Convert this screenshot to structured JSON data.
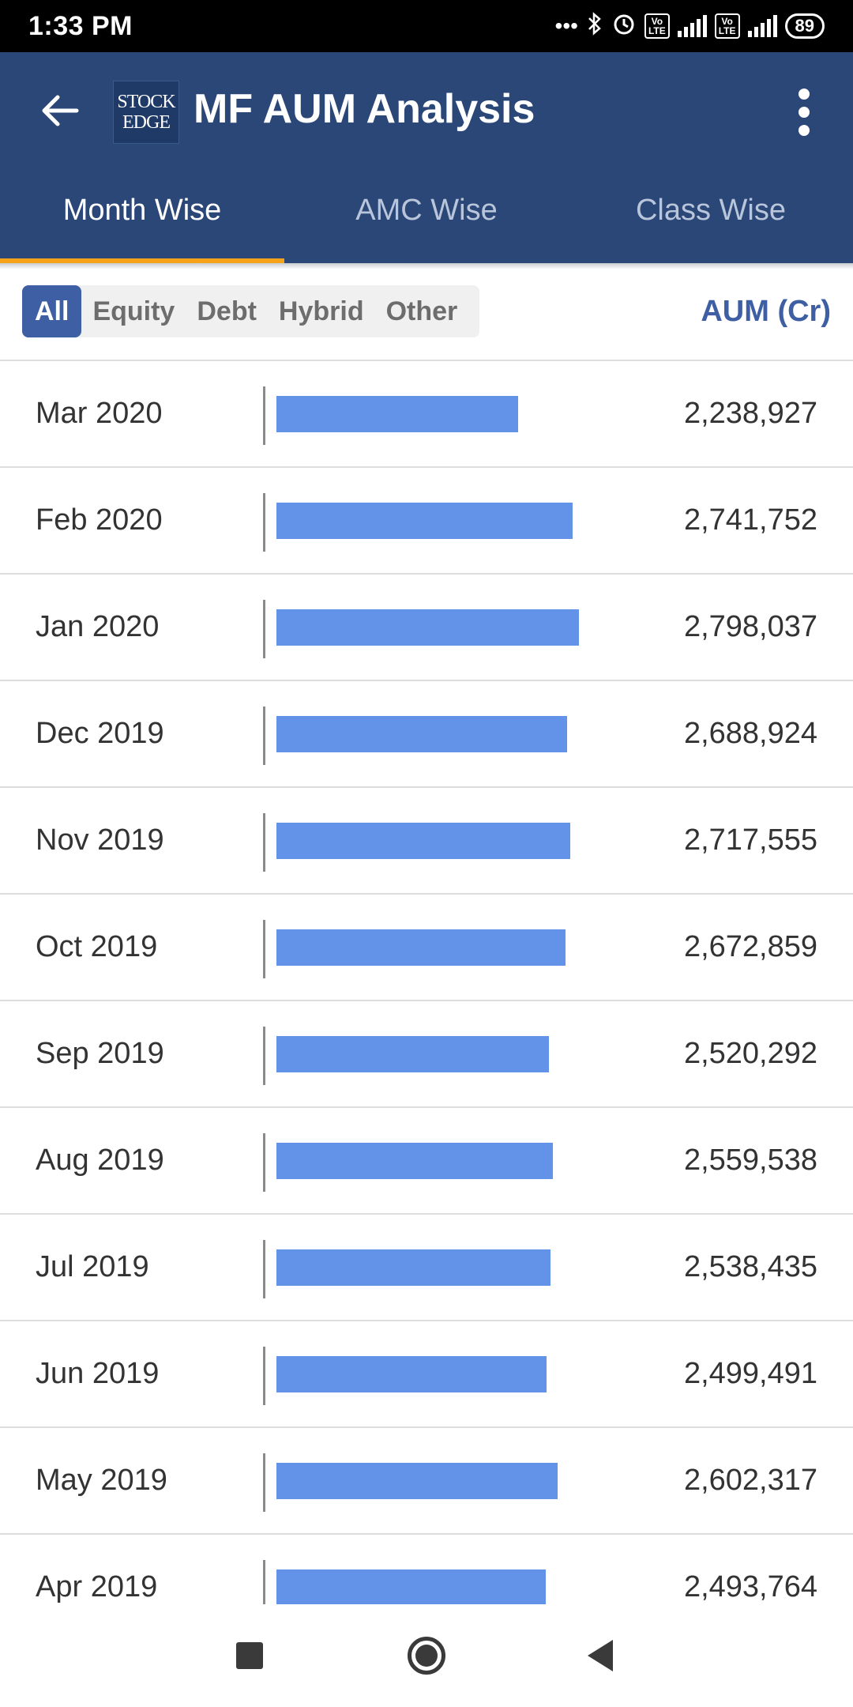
{
  "status_bar": {
    "time": "1:33 PM",
    "battery": "89",
    "network": "4G",
    "icons": [
      "more-dots-icon",
      "bluetooth-icon",
      "alarm-icon",
      "volte-icon",
      "signal-icon",
      "volte-icon",
      "signal-4g-icon",
      "battery-icon"
    ]
  },
  "header": {
    "title": "MF AUM Analysis",
    "logo_line1": "STOCK",
    "logo_line2": "EDGE",
    "background": "#2a4778"
  },
  "tabs": [
    {
      "label": "Month Wise",
      "active": true
    },
    {
      "label": "AMC Wise",
      "active": false
    },
    {
      "label": "Class Wise",
      "active": false
    }
  ],
  "filters": {
    "options": [
      "All",
      "Equity",
      "Debt",
      "Hybrid",
      "Other"
    ],
    "selected": "All",
    "column_label": "AUM (Cr)"
  },
  "colors": {
    "accent": "#f4a31b",
    "bar": "#6393e8",
    "chip_active": "#3e5fa3"
  },
  "rows": [
    {
      "month": "Mar 2020",
      "value": "2,238,927",
      "aum": 2238927
    },
    {
      "month": "Feb 2020",
      "value": "2,741,752",
      "aum": 2741752
    },
    {
      "month": "Jan 2020",
      "value": "2,798,037",
      "aum": 2798037
    },
    {
      "month": "Dec 2019",
      "value": "2,688,924",
      "aum": 2688924
    },
    {
      "month": "Nov 2019",
      "value": "2,717,555",
      "aum": 2717555
    },
    {
      "month": "Oct 2019",
      "value": "2,672,859",
      "aum": 2672859
    },
    {
      "month": "Sep 2019",
      "value": "2,520,292",
      "aum": 2520292
    },
    {
      "month": "Aug 2019",
      "value": "2,559,538",
      "aum": 2559538
    },
    {
      "month": "Jul 2019",
      "value": "2,538,435",
      "aum": 2538435
    },
    {
      "month": "Jun 2019",
      "value": "2,499,491",
      "aum": 2499491
    },
    {
      "month": "May 2019",
      "value": "2,602,317",
      "aum": 2602317
    },
    {
      "month": "Apr 2019",
      "value": "2,493,764",
      "aum": 2493764
    }
  ]
}
